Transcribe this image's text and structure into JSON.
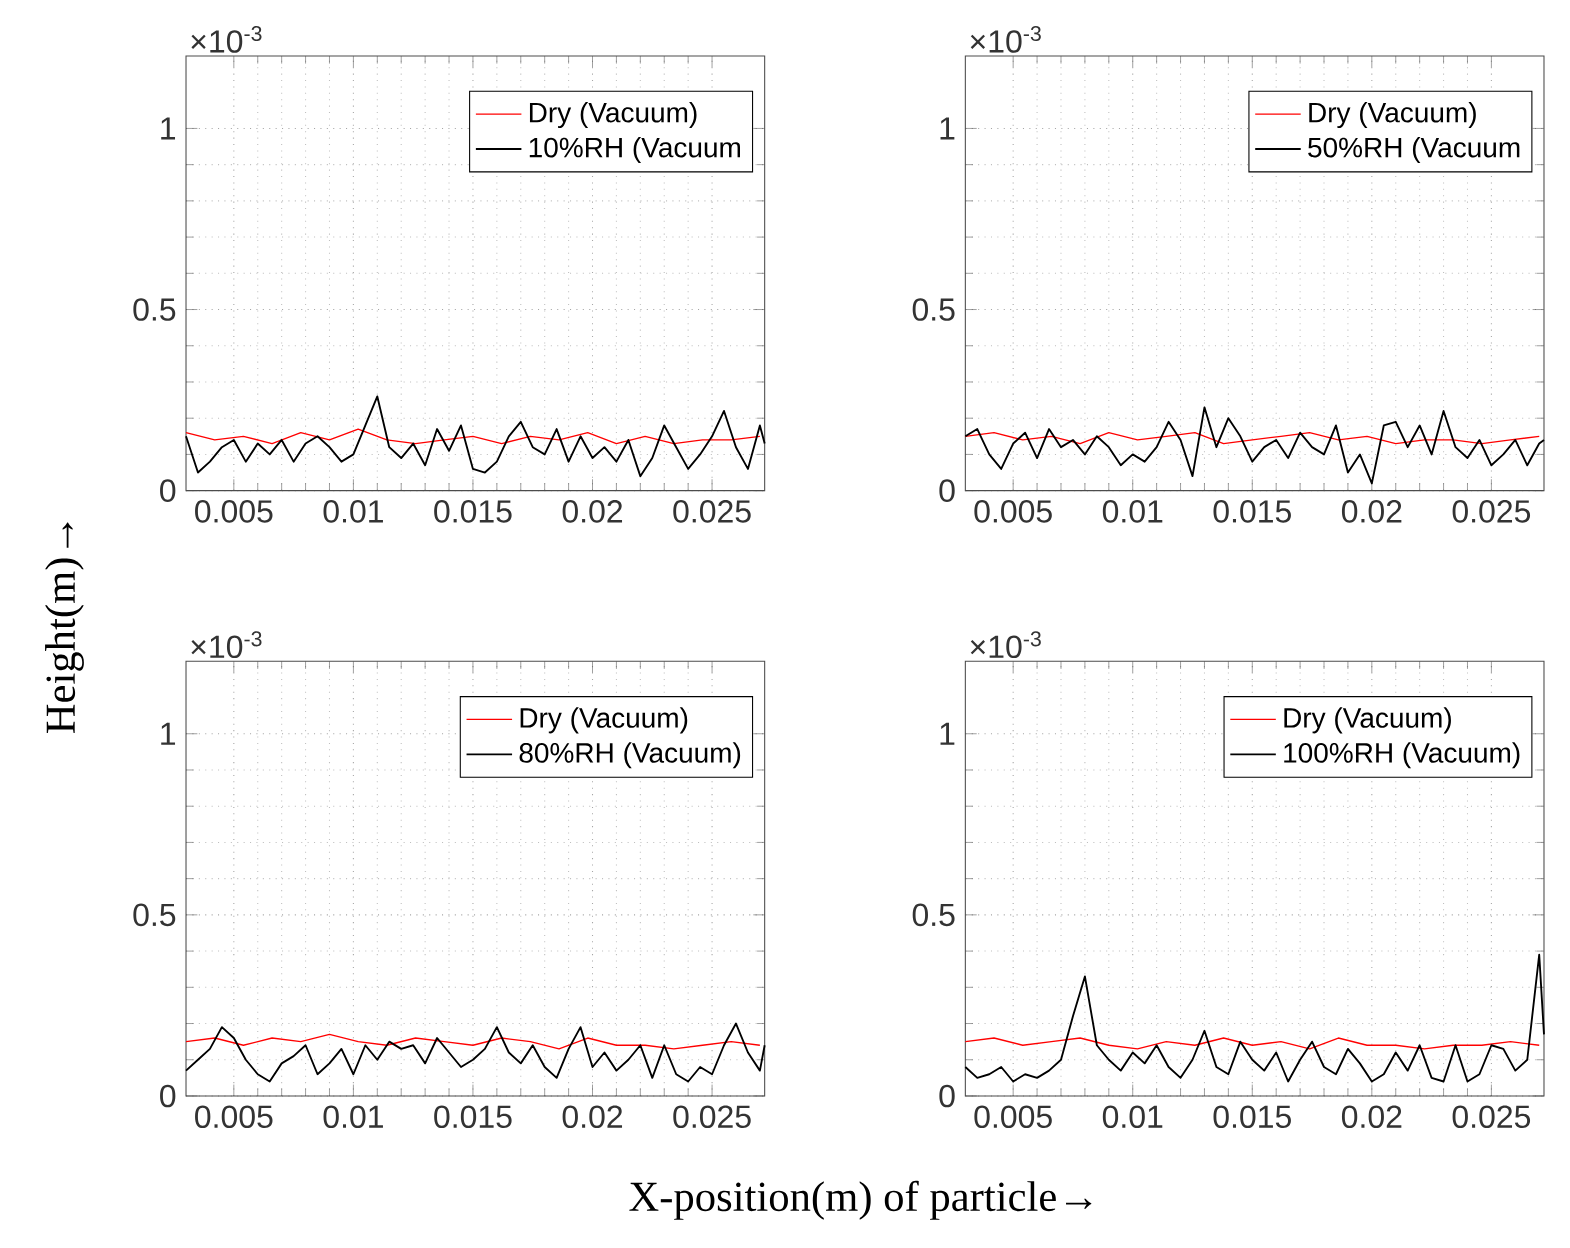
{
  "chart_data": [
    {
      "type": "line",
      "ylabel": "Height(m)→",
      "annotations": [
        "×10$^{-3}$"
      ],
      "xlim": [
        0.003,
        0.0272
      ],
      "ylim": [
        0,
        1.2
      ],
      "xticks": [
        0.005,
        0.01,
        0.015,
        0.02,
        0.025
      ],
      "yticks": [
        0,
        0.5,
        1
      ],
      "grid": true,
      "legend": "top right",
      "marker": "none",
      "line_style": "solid",
      "series": [
        {
          "name": "Dry (Vacuum)",
          "color": "#ff0000",
          "x": [
            0.003,
            0.0042,
            0.0054,
            0.0066,
            0.0078,
            0.009,
            0.0102,
            0.0114,
            0.0126,
            0.0138,
            0.015,
            0.0162,
            0.0174,
            0.0186,
            0.0198,
            0.021,
            0.0222,
            0.0234,
            0.0246,
            0.0258,
            0.027
          ],
          "values": [
            0.16,
            0.14,
            0.15,
            0.13,
            0.16,
            0.14,
            0.17,
            0.14,
            0.13,
            0.14,
            0.15,
            0.13,
            0.15,
            0.14,
            0.16,
            0.13,
            0.15,
            0.13,
            0.14,
            0.14,
            0.15
          ]
        },
        {
          "name": "10%RH (Vacuum",
          "color": "#000000",
          "x": [
            0.003,
            0.0035,
            0.004,
            0.0045,
            0.005,
            0.0055,
            0.006,
            0.0065,
            0.007,
            0.0075,
            0.008,
            0.0085,
            0.009,
            0.0095,
            0.01,
            0.0105,
            0.011,
            0.0115,
            0.012,
            0.0125,
            0.013,
            0.0135,
            0.014,
            0.0145,
            0.015,
            0.0155,
            0.016,
            0.0165,
            0.017,
            0.0175,
            0.018,
            0.0185,
            0.019,
            0.0195,
            0.02,
            0.0205,
            0.021,
            0.0215,
            0.022,
            0.0225,
            0.023,
            0.0235,
            0.024,
            0.0245,
            0.025,
            0.0255,
            0.026,
            0.0265,
            0.027,
            0.0272
          ],
          "values": [
            0.15,
            0.05,
            0.08,
            0.12,
            0.14,
            0.08,
            0.13,
            0.1,
            0.14,
            0.08,
            0.13,
            0.15,
            0.12,
            0.08,
            0.1,
            0.18,
            0.26,
            0.12,
            0.09,
            0.13,
            0.07,
            0.17,
            0.11,
            0.18,
            0.06,
            0.05,
            0.08,
            0.15,
            0.19,
            0.12,
            0.1,
            0.17,
            0.08,
            0.15,
            0.09,
            0.12,
            0.08,
            0.14,
            0.04,
            0.09,
            0.18,
            0.12,
            0.06,
            0.1,
            0.15,
            0.22,
            0.12,
            0.06,
            0.18,
            0.13
          ]
        }
      ]
    },
    {
      "type": "line",
      "annotations": [
        "×10$^{-3}$"
      ],
      "xlim": [
        0.003,
        0.0272
      ],
      "ylim": [
        0,
        1.2
      ],
      "xticks": [
        0.005,
        0.01,
        0.015,
        0.02,
        0.025
      ],
      "yticks": [
        0,
        0.5,
        1
      ],
      "grid": true,
      "legend": "top right",
      "marker": "none",
      "line_style": "solid",
      "series": [
        {
          "name": "Dry (Vacuum)",
          "color": "#ff0000",
          "x": [
            0.003,
            0.0042,
            0.0054,
            0.0066,
            0.0078,
            0.009,
            0.0102,
            0.0114,
            0.0126,
            0.0138,
            0.015,
            0.0162,
            0.0174,
            0.0186,
            0.0198,
            0.021,
            0.0222,
            0.0234,
            0.0246,
            0.0258,
            0.027
          ],
          "values": [
            0.15,
            0.16,
            0.14,
            0.15,
            0.13,
            0.16,
            0.14,
            0.15,
            0.16,
            0.13,
            0.14,
            0.15,
            0.16,
            0.14,
            0.15,
            0.13,
            0.14,
            0.14,
            0.13,
            0.14,
            0.15
          ]
        },
        {
          "name": "50%RH (Vacuum",
          "color": "#000000",
          "x": [
            0.003,
            0.0035,
            0.004,
            0.0045,
            0.005,
            0.0055,
            0.006,
            0.0065,
            0.007,
            0.0075,
            0.008,
            0.0085,
            0.009,
            0.0095,
            0.01,
            0.0105,
            0.011,
            0.0115,
            0.012,
            0.0125,
            0.013,
            0.0135,
            0.014,
            0.0145,
            0.015,
            0.0155,
            0.016,
            0.0165,
            0.017,
            0.0175,
            0.018,
            0.0185,
            0.019,
            0.0195,
            0.02,
            0.0205,
            0.021,
            0.0215,
            0.022,
            0.0225,
            0.023,
            0.0235,
            0.024,
            0.0245,
            0.025,
            0.0255,
            0.026,
            0.0265,
            0.027,
            0.0272
          ],
          "values": [
            0.15,
            0.17,
            0.1,
            0.06,
            0.13,
            0.16,
            0.09,
            0.17,
            0.12,
            0.14,
            0.1,
            0.15,
            0.12,
            0.07,
            0.1,
            0.08,
            0.12,
            0.19,
            0.14,
            0.04,
            0.23,
            0.12,
            0.2,
            0.15,
            0.08,
            0.12,
            0.14,
            0.09,
            0.16,
            0.12,
            0.1,
            0.18,
            0.05,
            0.1,
            0.02,
            0.18,
            0.19,
            0.12,
            0.18,
            0.1,
            0.22,
            0.12,
            0.09,
            0.14,
            0.07,
            0.1,
            0.14,
            0.07,
            0.13,
            0.14
          ]
        }
      ]
    },
    {
      "type": "line",
      "xlabel": "X-position(m) of particle→",
      "annotations": [
        "×10$^{-3}$"
      ],
      "xlim": [
        0.003,
        0.0272
      ],
      "ylim": [
        0,
        1.2
      ],
      "xticks": [
        0.005,
        0.01,
        0.015,
        0.02,
        0.025
      ],
      "yticks": [
        0,
        0.5,
        1
      ],
      "grid": true,
      "legend": "top right",
      "marker": "none",
      "line_style": "solid",
      "series": [
        {
          "name": "Dry (Vacuum)",
          "color": "#ff0000",
          "x": [
            0.003,
            0.0042,
            0.0054,
            0.0066,
            0.0078,
            0.009,
            0.0102,
            0.0114,
            0.0126,
            0.0138,
            0.015,
            0.0162,
            0.0174,
            0.0186,
            0.0198,
            0.021,
            0.0222,
            0.0234,
            0.0246,
            0.0258,
            0.027
          ],
          "values": [
            0.15,
            0.16,
            0.14,
            0.16,
            0.15,
            0.17,
            0.15,
            0.14,
            0.16,
            0.15,
            0.14,
            0.16,
            0.15,
            0.13,
            0.16,
            0.14,
            0.14,
            0.13,
            0.14,
            0.15,
            0.14
          ]
        },
        {
          "name": "80%RH (Vacuum)",
          "color": "#000000",
          "x": [
            0.003,
            0.0035,
            0.004,
            0.0045,
            0.005,
            0.0055,
            0.006,
            0.0065,
            0.007,
            0.0075,
            0.008,
            0.0085,
            0.009,
            0.0095,
            0.01,
            0.0105,
            0.011,
            0.0115,
            0.012,
            0.0125,
            0.013,
            0.0135,
            0.014,
            0.0145,
            0.015,
            0.0155,
            0.016,
            0.0165,
            0.017,
            0.0175,
            0.018,
            0.0185,
            0.019,
            0.0195,
            0.02,
            0.0205,
            0.021,
            0.0215,
            0.022,
            0.0225,
            0.023,
            0.0235,
            0.024,
            0.0245,
            0.025,
            0.0255,
            0.026,
            0.0265,
            0.027,
            0.0272
          ],
          "values": [
            0.07,
            0.1,
            0.13,
            0.19,
            0.16,
            0.1,
            0.06,
            0.04,
            0.09,
            0.11,
            0.14,
            0.06,
            0.09,
            0.13,
            0.06,
            0.14,
            0.1,
            0.15,
            0.13,
            0.14,
            0.09,
            0.16,
            0.12,
            0.08,
            0.1,
            0.13,
            0.19,
            0.12,
            0.09,
            0.14,
            0.08,
            0.05,
            0.13,
            0.19,
            0.08,
            0.12,
            0.07,
            0.1,
            0.14,
            0.05,
            0.14,
            0.06,
            0.04,
            0.08,
            0.06,
            0.14,
            0.2,
            0.12,
            0.07,
            0.14
          ]
        }
      ]
    },
    {
      "type": "line",
      "annotations": [
        "×10$^{-3}$"
      ],
      "xlim": [
        0.003,
        0.0272
      ],
      "ylim": [
        0,
        1.2
      ],
      "xticks": [
        0.005,
        0.01,
        0.015,
        0.02,
        0.025
      ],
      "yticks": [
        0,
        0.5,
        1
      ],
      "grid": true,
      "legend": "top right",
      "marker": "none",
      "line_style": "solid",
      "series": [
        {
          "name": "Dry (Vacuum)",
          "color": "#ff0000",
          "x": [
            0.003,
            0.0042,
            0.0054,
            0.0066,
            0.0078,
            0.009,
            0.0102,
            0.0114,
            0.0126,
            0.0138,
            0.015,
            0.0162,
            0.0174,
            0.0186,
            0.0198,
            0.021,
            0.0222,
            0.0234,
            0.0246,
            0.0258,
            0.027
          ],
          "values": [
            0.15,
            0.16,
            0.14,
            0.15,
            0.16,
            0.14,
            0.13,
            0.15,
            0.14,
            0.16,
            0.14,
            0.15,
            0.13,
            0.16,
            0.14,
            0.14,
            0.13,
            0.14,
            0.14,
            0.15,
            0.14
          ]
        },
        {
          "name": "100%RH (Vacuum)",
          "color": "#000000",
          "x": [
            0.003,
            0.0035,
            0.004,
            0.0045,
            0.005,
            0.0055,
            0.006,
            0.0065,
            0.007,
            0.0075,
            0.008,
            0.0085,
            0.009,
            0.0095,
            0.01,
            0.0105,
            0.011,
            0.0115,
            0.012,
            0.0125,
            0.013,
            0.0135,
            0.014,
            0.0145,
            0.015,
            0.0155,
            0.016,
            0.0165,
            0.017,
            0.0175,
            0.018,
            0.0185,
            0.019,
            0.0195,
            0.02,
            0.0205,
            0.021,
            0.0215,
            0.022,
            0.0225,
            0.023,
            0.0235,
            0.024,
            0.0245,
            0.025,
            0.0255,
            0.026,
            0.0265,
            0.027,
            0.0272
          ],
          "values": [
            0.08,
            0.05,
            0.06,
            0.08,
            0.04,
            0.06,
            0.05,
            0.07,
            0.1,
            0.22,
            0.33,
            0.14,
            0.1,
            0.07,
            0.12,
            0.09,
            0.14,
            0.08,
            0.05,
            0.1,
            0.18,
            0.08,
            0.06,
            0.15,
            0.1,
            0.07,
            0.12,
            0.04,
            0.1,
            0.15,
            0.08,
            0.06,
            0.13,
            0.09,
            0.04,
            0.06,
            0.12,
            0.07,
            0.14,
            0.05,
            0.04,
            0.14,
            0.04,
            0.06,
            0.14,
            0.13,
            0.07,
            0.1,
            0.39,
            0.17
          ]
        }
      ]
    }
  ]
}
